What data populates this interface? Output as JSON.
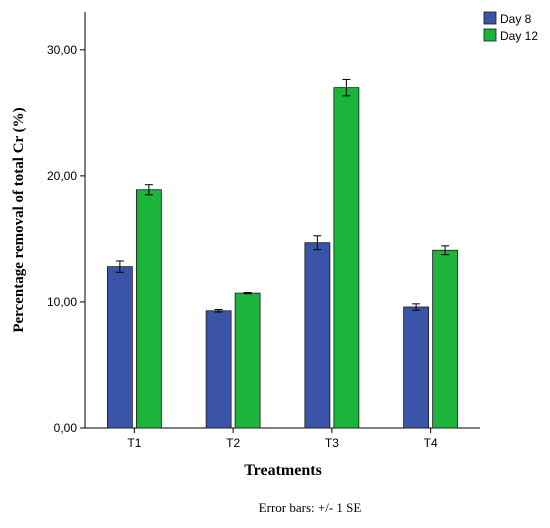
{
  "chart_data": {
    "type": "bar",
    "categories": [
      "T1",
      "T2",
      "T3",
      "T4"
    ],
    "series": [
      {
        "name": "Day 8",
        "color": "#3a55a8",
        "values": [
          12.8,
          9.3,
          14.7,
          9.6
        ],
        "errors": [
          0.45,
          0.1,
          0.55,
          0.25
        ]
      },
      {
        "name": "Day 12",
        "color": "#1db43c",
        "values": [
          18.9,
          10.7,
          27.0,
          14.1
        ],
        "errors": [
          0.4,
          0.05,
          0.65,
          0.35
        ]
      }
    ],
    "xlabel": "Treatments",
    "ylabel": "Percentage removal of total Cr (%)",
    "ylim": [
      0,
      33
    ],
    "yticks": [
      0,
      10,
      20,
      30
    ],
    "ytick_labels": [
      "0,00",
      "10,00",
      "20,00",
      "30,00"
    ],
    "grid": false,
    "legend_position": "top-right",
    "note": "Error bars: +/- 1 SE"
  }
}
